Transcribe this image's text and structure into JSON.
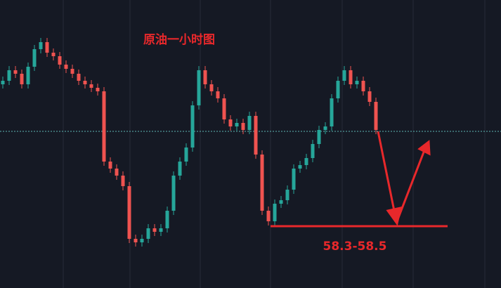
{
  "chart_data": {
    "type": "candlestick",
    "title": "原油一小时图",
    "ylim": [
      57.52,
      61.62
    ],
    "up_color": "#26a69a",
    "down_color": "#ef5350",
    "open": [
      60.42,
      60.47,
      60.62,
      60.57,
      60.42,
      60.67,
      60.92,
      61.02,
      60.87,
      60.82,
      60.7,
      60.64,
      60.57,
      60.47,
      60.42,
      60.37,
      60.32,
      59.32,
      59.22,
      59.12,
      58.97,
      58.22,
      58.17,
      58.22,
      58.37,
      58.32,
      58.37,
      58.62,
      59.12,
      59.32,
      59.52,
      60.12,
      60.62,
      60.42,
      60.32,
      60.22,
      59.92,
      59.82,
      59.87,
      59.77,
      59.97,
      59.42,
      58.62,
      58.47,
      58.72,
      58.77,
      58.92,
      59.22,
      59.27,
      59.37,
      59.57,
      59.77,
      59.82,
      60.22,
      60.47,
      60.62,
      60.42,
      60.47,
      60.32,
      60.17
    ],
    "high": [
      60.53,
      60.68,
      60.68,
      60.63,
      60.73,
      60.98,
      61.08,
      61.08,
      60.93,
      60.88,
      60.76,
      60.7,
      60.63,
      60.53,
      60.48,
      60.43,
      60.38,
      59.38,
      59.28,
      59.18,
      59.03,
      58.28,
      58.28,
      58.43,
      58.43,
      58.43,
      58.68,
      59.18,
      59.38,
      59.58,
      60.18,
      60.68,
      60.68,
      60.48,
      60.38,
      60.28,
      59.98,
      59.93,
      59.93,
      60.03,
      60.03,
      59.48,
      58.68,
      58.78,
      58.83,
      58.98,
      59.28,
      59.33,
      59.43,
      59.63,
      59.83,
      59.88,
      60.28,
      60.53,
      60.68,
      60.68,
      60.53,
      60.53,
      60.38,
      60.23
    ],
    "low": [
      60.36,
      60.41,
      60.51,
      60.36,
      60.36,
      60.61,
      60.86,
      60.81,
      60.76,
      60.64,
      60.58,
      60.51,
      60.41,
      60.36,
      60.31,
      60.26,
      59.26,
      59.16,
      59.06,
      58.91,
      58.16,
      58.11,
      58.11,
      58.16,
      58.26,
      58.26,
      58.31,
      58.56,
      59.06,
      59.26,
      59.46,
      60.06,
      60.36,
      60.26,
      60.16,
      59.86,
      59.76,
      59.76,
      59.71,
      59.71,
      59.36,
      58.56,
      58.41,
      58.41,
      58.66,
      58.71,
      58.86,
      59.16,
      59.21,
      59.31,
      59.51,
      59.71,
      59.76,
      60.16,
      60.41,
      60.36,
      60.36,
      60.26,
      60.11,
      59.71
    ],
    "close": [
      60.47,
      60.62,
      60.57,
      60.42,
      60.67,
      60.92,
      61.02,
      60.87,
      60.82,
      60.7,
      60.64,
      60.57,
      60.47,
      60.42,
      60.37,
      60.32,
      59.32,
      59.22,
      59.12,
      58.97,
      58.22,
      58.17,
      58.22,
      58.37,
      58.32,
      58.37,
      58.62,
      59.12,
      59.32,
      59.52,
      60.12,
      60.62,
      60.42,
      60.32,
      60.22,
      59.92,
      59.82,
      59.87,
      59.77,
      59.97,
      59.42,
      58.62,
      58.47,
      58.72,
      58.77,
      58.92,
      59.22,
      59.27,
      59.37,
      59.57,
      59.77,
      59.82,
      60.22,
      60.47,
      60.62,
      60.42,
      60.47,
      60.32,
      60.17,
      59.77
    ],
    "price_line": {
      "value": 59.75,
      "color": "#5fb8b4"
    },
    "annotation": {
      "text": "58.3-58.5",
      "value": 58.4,
      "color": "#e8282b"
    }
  }
}
